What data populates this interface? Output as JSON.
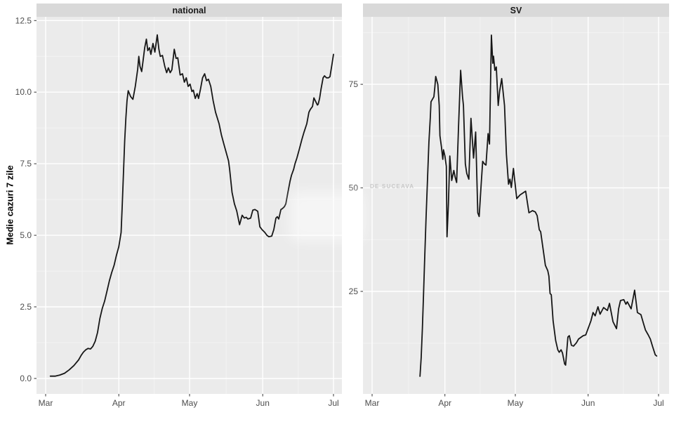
{
  "figure": {
    "y_axis_title": "Medie cazuri 7 zile",
    "watermark": "DE SUCEAVA",
    "colors": {
      "line": "#161616",
      "panel_bg": "#ebebeb",
      "strip_bg": "#d9d9d9",
      "grid_major": "#ffffff",
      "grid_minor": "#f3f3f3",
      "axis_text": "#4d4d4d",
      "tick_mark": "#333333",
      "watermark_text": "#c9c9c9"
    }
  },
  "chart_data": [
    {
      "type": "line",
      "title": "national",
      "xlabel": "",
      "ylabel": "Medie cazuri 7 zile",
      "x_unit": "days since Mar 1",
      "x_tick_labels": [
        "Mar",
        "Apr",
        "May",
        "Jun",
        "Jul"
      ],
      "x_tick_days": [
        0,
        31,
        61,
        92,
        122
      ],
      "xlim_days": [
        0,
        122
      ],
      "yticks": [
        {
          "v": 0,
          "label": "0.0"
        },
        {
          "v": 2.5,
          "label": "2.5"
        },
        {
          "v": 5,
          "label": "5.0"
        },
        {
          "v": 7.5,
          "label": "7.5"
        },
        {
          "v": 10,
          "label": "10.0"
        },
        {
          "v": 12.5,
          "label": "12.5"
        }
      ],
      "render_ylim": [
        -0.54,
        12.63
      ],
      "grid": true,
      "legend": "none",
      "points": [
        [
          2,
          0.08
        ],
        [
          4,
          0.08
        ],
        [
          6,
          0.12
        ],
        [
          8,
          0.18
        ],
        [
          10,
          0.3
        ],
        [
          12,
          0.45
        ],
        [
          14,
          0.65
        ],
        [
          15,
          0.8
        ],
        [
          16,
          0.92
        ],
        [
          17,
          1.0
        ],
        [
          18,
          1.05
        ],
        [
          19,
          1.03
        ],
        [
          20,
          1.12
        ],
        [
          21,
          1.3
        ],
        [
          22,
          1.6
        ],
        [
          23,
          2.1
        ],
        [
          24,
          2.45
        ],
        [
          25,
          2.7
        ],
        [
          26,
          3.05
        ],
        [
          27,
          3.4
        ],
        [
          28,
          3.7
        ],
        [
          29,
          3.95
        ],
        [
          30,
          4.3
        ],
        [
          31,
          4.6
        ],
        [
          32,
          5.1
        ],
        [
          32.5,
          6.1
        ],
        [
          33,
          7.2
        ],
        [
          33.5,
          8.3
        ],
        [
          34,
          9.1
        ],
        [
          34.5,
          9.7
        ],
        [
          35,
          10.05
        ],
        [
          36,
          9.85
        ],
        [
          37,
          9.75
        ],
        [
          38,
          10.2
        ],
        [
          39,
          10.8
        ],
        [
          39.5,
          11.25
        ],
        [
          40,
          10.9
        ],
        [
          40.7,
          10.72
        ],
        [
          41.3,
          11.1
        ],
        [
          42,
          11.55
        ],
        [
          42.7,
          11.85
        ],
        [
          43.3,
          11.45
        ],
        [
          44,
          11.55
        ],
        [
          44.6,
          11.32
        ],
        [
          45.5,
          11.7
        ],
        [
          46.3,
          11.4
        ],
        [
          47.3,
          12.0
        ],
        [
          48,
          11.5
        ],
        [
          48.6,
          11.25
        ],
        [
          49.5,
          11.28
        ],
        [
          50.5,
          10.9
        ],
        [
          51.3,
          10.68
        ],
        [
          52,
          10.85
        ],
        [
          52.8,
          10.68
        ],
        [
          53.5,
          10.78
        ],
        [
          54.5,
          11.5
        ],
        [
          55.3,
          11.18
        ],
        [
          56,
          11.2
        ],
        [
          57,
          10.6
        ],
        [
          58,
          10.64
        ],
        [
          58.8,
          10.35
        ],
        [
          59.6,
          10.5
        ],
        [
          60.4,
          10.2
        ],
        [
          61.2,
          10.28
        ],
        [
          62,
          10.02
        ],
        [
          62.6,
          10.07
        ],
        [
          63.4,
          9.78
        ],
        [
          64.2,
          9.95
        ],
        [
          64.8,
          9.78
        ],
        [
          65.6,
          10.1
        ],
        [
          66.5,
          10.5
        ],
        [
          67.4,
          10.64
        ],
        [
          68.2,
          10.4
        ],
        [
          69,
          10.45
        ],
        [
          70,
          10.2
        ],
        [
          71,
          9.7
        ],
        [
          72,
          9.3
        ],
        [
          73.5,
          8.9
        ],
        [
          74.5,
          8.5
        ],
        [
          75.5,
          8.2
        ],
        [
          76.5,
          7.9
        ],
        [
          77.5,
          7.6
        ],
        [
          78,
          7.3
        ],
        [
          79,
          6.5
        ],
        [
          80,
          6.1
        ],
        [
          81,
          5.85
        ],
        [
          82.2,
          5.37
        ],
        [
          83.3,
          5.7
        ],
        [
          84.2,
          5.6
        ],
        [
          85,
          5.63
        ],
        [
          85.7,
          5.57
        ],
        [
          86.9,
          5.6
        ],
        [
          87.8,
          5.88
        ],
        [
          88.7,
          5.9
        ],
        [
          89.9,
          5.84
        ],
        [
          90.8,
          5.3
        ],
        [
          91.7,
          5.2
        ],
        [
          92.9,
          5.1
        ],
        [
          93.8,
          5.0
        ],
        [
          94.6,
          4.95
        ],
        [
          95.8,
          4.97
        ],
        [
          96.7,
          5.2
        ],
        [
          97.6,
          5.6
        ],
        [
          98.2,
          5.65
        ],
        [
          98.8,
          5.57
        ],
        [
          99.7,
          5.9
        ],
        [
          100.3,
          5.93
        ],
        [
          101.2,
          6.0
        ],
        [
          101.8,
          6.1
        ],
        [
          102.7,
          6.5
        ],
        [
          103.6,
          6.9
        ],
        [
          104.2,
          7.1
        ],
        [
          105.1,
          7.3
        ],
        [
          105.7,
          7.5
        ],
        [
          106.5,
          7.7
        ],
        [
          107.7,
          8.06
        ],
        [
          108.6,
          8.35
        ],
        [
          109.5,
          8.6
        ],
        [
          110.7,
          8.9
        ],
        [
          111.6,
          9.3
        ],
        [
          112.2,
          9.4
        ],
        [
          113.1,
          9.5
        ],
        [
          113.7,
          9.8
        ],
        [
          114.3,
          9.7
        ],
        [
          115.2,
          9.55
        ],
        [
          115.5,
          9.58
        ],
        [
          116.1,
          9.78
        ],
        [
          116.7,
          10.1
        ],
        [
          117.6,
          10.5
        ],
        [
          118.2,
          10.57
        ],
        [
          119,
          10.5
        ],
        [
          119.9,
          10.5
        ],
        [
          120.5,
          10.54
        ],
        [
          121.4,
          11.0
        ],
        [
          122,
          11.32
        ]
      ]
    },
    {
      "type": "line",
      "title": "SV",
      "xlabel": "",
      "ylabel": "Medie cazuri 7 zile",
      "x_unit": "days since Mar 1",
      "x_tick_labels": [
        "Mar",
        "Apr",
        "May",
        "Jun",
        "Jul"
      ],
      "x_tick_days": [
        0,
        31,
        61,
        92,
        122
      ],
      "xlim_days": [
        0,
        122
      ],
      "yticks": [
        {
          "v": 25,
          "label": "25"
        },
        {
          "v": 50,
          "label": "50"
        },
        {
          "v": 75,
          "label": "75"
        }
      ],
      "render_ylim": [
        0.25,
        91.3
      ],
      "grid": true,
      "legend": "none",
      "points": [
        [
          20.4,
          4.5
        ],
        [
          20.9,
          9
        ],
        [
          21.4,
          16
        ],
        [
          21.9,
          24
        ],
        [
          22.4,
          33
        ],
        [
          23,
          43
        ],
        [
          23.6,
          52
        ],
        [
          24.2,
          61
        ],
        [
          24.8,
          67
        ],
        [
          25.1,
          70.8
        ],
        [
          25.7,
          71.4
        ],
        [
          26.3,
          72
        ],
        [
          26.7,
          74.2
        ],
        [
          27.1,
          76.9
        ],
        [
          28,
          75
        ],
        [
          28.6,
          69.9
        ],
        [
          28.9,
          62.6
        ],
        [
          29.5,
          60
        ],
        [
          30.1,
          56.9
        ],
        [
          30.4,
          59.2
        ],
        [
          31,
          57.7
        ],
        [
          31.6,
          55.2
        ],
        [
          31.9,
          38.2
        ],
        [
          32.5,
          46.2
        ],
        [
          33.1,
          57.7
        ],
        [
          33.9,
          51.8
        ],
        [
          34.8,
          54.2
        ],
        [
          35.4,
          52.5
        ],
        [
          36,
          51.3
        ],
        [
          36.8,
          64.8
        ],
        [
          37.7,
          78.4
        ],
        [
          38.5,
          72
        ],
        [
          38.9,
          69.9
        ],
        [
          39.7,
          55.8
        ],
        [
          40.3,
          53.5
        ],
        [
          41.2,
          52.1
        ],
        [
          42.1,
          66.8
        ],
        [
          43.2,
          57.2
        ],
        [
          44.1,
          63.5
        ],
        [
          45,
          44
        ],
        [
          45.6,
          43.1
        ],
        [
          46.5,
          51.3
        ],
        [
          47.1,
          56.4
        ],
        [
          47.8,
          55.8
        ],
        [
          48.5,
          55.5
        ],
        [
          49.4,
          63.1
        ],
        [
          50,
          60.6
        ],
        [
          50.8,
          86.9
        ],
        [
          51.4,
          80.1
        ],
        [
          51.7,
          81.8
        ],
        [
          52.3,
          78.4
        ],
        [
          52.9,
          79.2
        ],
        [
          53.7,
          69.9
        ],
        [
          54.3,
          73.3
        ],
        [
          55.2,
          76.4
        ],
        [
          56.4,
          69.9
        ],
        [
          57.2,
          58.1
        ],
        [
          58.1,
          50.9
        ],
        [
          58.7,
          52.1
        ],
        [
          59.3,
          50.1
        ],
        [
          60.2,
          54.7
        ],
        [
          61.6,
          47.4
        ],
        [
          63,
          48.3
        ],
        [
          65.4,
          49.2
        ],
        [
          66.8,
          44
        ],
        [
          68.3,
          44.5
        ],
        [
          69.5,
          44.2
        ],
        [
          70.3,
          43.3
        ],
        [
          71.2,
          39.9
        ],
        [
          71.8,
          39.4
        ],
        [
          73.8,
          31.3
        ],
        [
          74.8,
          30
        ],
        [
          75.3,
          28.7
        ],
        [
          75.8,
          24.5
        ],
        [
          76.3,
          24.2
        ],
        [
          77.1,
          17.9
        ],
        [
          78.2,
          13.1
        ],
        [
          79.1,
          10.9
        ],
        [
          79.7,
          10.3
        ],
        [
          80.5,
          10.9
        ],
        [
          81.1,
          10.1
        ],
        [
          82,
          7.5
        ],
        [
          82.4,
          7.2
        ],
        [
          83.4,
          14
        ],
        [
          84,
          14.3
        ],
        [
          84.9,
          12
        ],
        [
          85.8,
          11.8
        ],
        [
          87,
          12.6
        ],
        [
          87.9,
          13.5
        ],
        [
          89.9,
          14.3
        ],
        [
          91,
          14.5
        ],
        [
          92.1,
          16.2
        ],
        [
          93.2,
          17.9
        ],
        [
          94.1,
          19.9
        ],
        [
          95,
          19.1
        ],
        [
          96.2,
          21.3
        ],
        [
          97.1,
          19.5
        ],
        [
          98.6,
          21.1
        ],
        [
          100.2,
          20.4
        ],
        [
          101.1,
          22.1
        ],
        [
          102.6,
          17.7
        ],
        [
          104.1,
          16.0
        ],
        [
          105,
          20.8
        ],
        [
          105.8,
          22.8
        ],
        [
          107.2,
          23
        ],
        [
          108.1,
          21.9
        ],
        [
          108.7,
          22.5
        ],
        [
          110.3,
          20.8
        ],
        [
          111.8,
          25.3
        ],
        [
          113,
          19.9
        ],
        [
          114.5,
          19.4
        ],
        [
          115.5,
          17.4
        ],
        [
          116.4,
          15.7
        ],
        [
          117.6,
          14.5
        ],
        [
          118.5,
          13.5
        ],
        [
          119.4,
          11.8
        ],
        [
          120.6,
          9.7
        ],
        [
          121.2,
          9.4
        ]
      ]
    }
  ]
}
